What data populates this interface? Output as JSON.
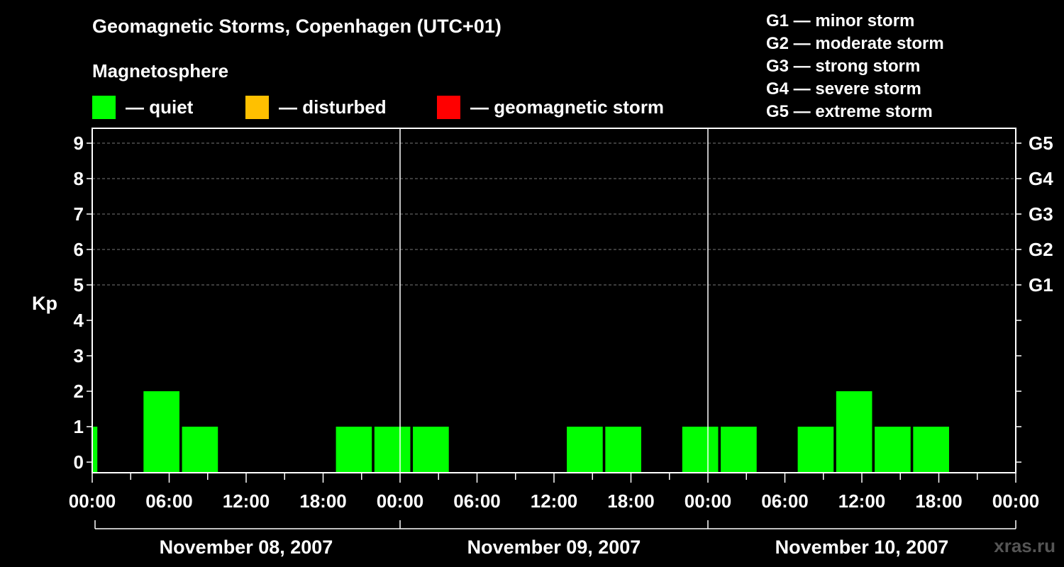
{
  "title": "Geomagnetic Storms, Copenhagen (UTC+01)",
  "subtitle": "Magnetosphere",
  "legend": [
    {
      "label": "— quiet",
      "color": "#00ff00"
    },
    {
      "label": "— disturbed",
      "color": "#ffc000"
    },
    {
      "label": "— geomagnetic storm",
      "color": "#ff0000"
    }
  ],
  "g_scale": [
    {
      "label": "G1 — minor storm"
    },
    {
      "label": "G2 — moderate storm"
    },
    {
      "label": "G3 — strong storm"
    },
    {
      "label": "G4 — severe storm"
    },
    {
      "label": "G5 — extreme storm"
    }
  ],
  "watermark": "xras.ru",
  "chart_data": {
    "type": "bar",
    "ylabel": "Kp",
    "ylim": [
      0,
      9
    ],
    "y_ticks": [
      "0",
      "1",
      "2",
      "3",
      "4",
      "5",
      "6",
      "7",
      "8",
      "9"
    ],
    "right_axis_labels": [
      {
        "kp": 5,
        "label": "G1"
      },
      {
        "kp": 6,
        "label": "G2"
      },
      {
        "kp": 7,
        "label": "G3"
      },
      {
        "kp": 8,
        "label": "G4"
      },
      {
        "kp": 9,
        "label": "G5"
      }
    ],
    "x_tick_labels": [
      "00:00",
      "06:00",
      "12:00",
      "18:00",
      "00:00",
      "06:00",
      "12:00",
      "18:00",
      "00:00",
      "06:00",
      "12:00",
      "18:00",
      "00:00"
    ],
    "x_range_hours": [
      0,
      72
    ],
    "day_labels": [
      "November 08, 2007",
      "November 09, 2007",
      "November 10, 2007"
    ],
    "grid": "horizontal dashed at Kp 5-9",
    "bars": [
      {
        "start_hour": 0,
        "end_hour": 0.4,
        "kp": 1,
        "status": "quiet"
      },
      {
        "start_hour": 4,
        "end_hour": 6.8,
        "kp": 2,
        "status": "quiet"
      },
      {
        "start_hour": 7,
        "end_hour": 9.8,
        "kp": 1,
        "status": "quiet"
      },
      {
        "start_hour": 19,
        "end_hour": 21.8,
        "kp": 1,
        "status": "quiet"
      },
      {
        "start_hour": 22,
        "end_hour": 24.8,
        "kp": 1,
        "status": "quiet"
      },
      {
        "start_hour": 25,
        "end_hour": 27.8,
        "kp": 1,
        "status": "quiet"
      },
      {
        "start_hour": 37,
        "end_hour": 39.8,
        "kp": 1,
        "status": "quiet"
      },
      {
        "start_hour": 40,
        "end_hour": 42.8,
        "kp": 1,
        "status": "quiet"
      },
      {
        "start_hour": 46,
        "end_hour": 48.8,
        "kp": 1,
        "status": "quiet"
      },
      {
        "start_hour": 49,
        "end_hour": 51.8,
        "kp": 1,
        "status": "quiet"
      },
      {
        "start_hour": 55,
        "end_hour": 57.8,
        "kp": 1,
        "status": "quiet"
      },
      {
        "start_hour": 58,
        "end_hour": 60.8,
        "kp": 2,
        "status": "quiet"
      },
      {
        "start_hour": 61,
        "end_hour": 63.8,
        "kp": 1,
        "status": "quiet"
      },
      {
        "start_hour": 64,
        "end_hour": 66.8,
        "kp": 1,
        "status": "quiet"
      }
    ]
  }
}
